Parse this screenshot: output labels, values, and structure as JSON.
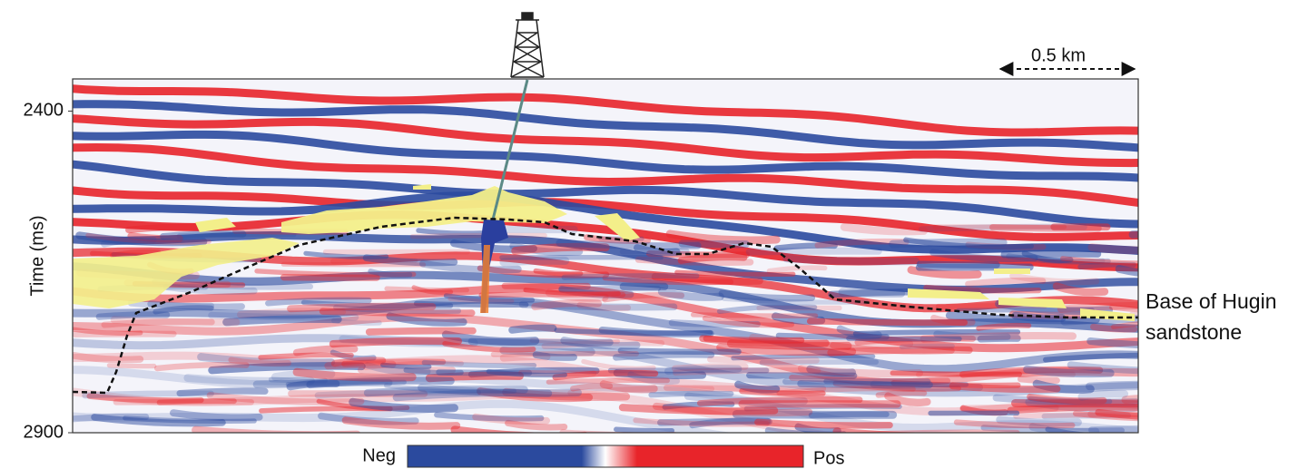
{
  "chart_data": {
    "type": "seismic-section",
    "y_label": "Time (ms)",
    "ylim": [
      2350,
      2900
    ],
    "yticks": [
      2400,
      2900
    ],
    "scale_bar": "0.5 km",
    "annotation": [
      "Base of Hugin",
      "sandstone"
    ],
    "colorbar": {
      "low": "Neg",
      "high": "Pos",
      "colors": [
        "#2b4a9e",
        "#ffffff",
        "#e8242a"
      ]
    }
  }
}
